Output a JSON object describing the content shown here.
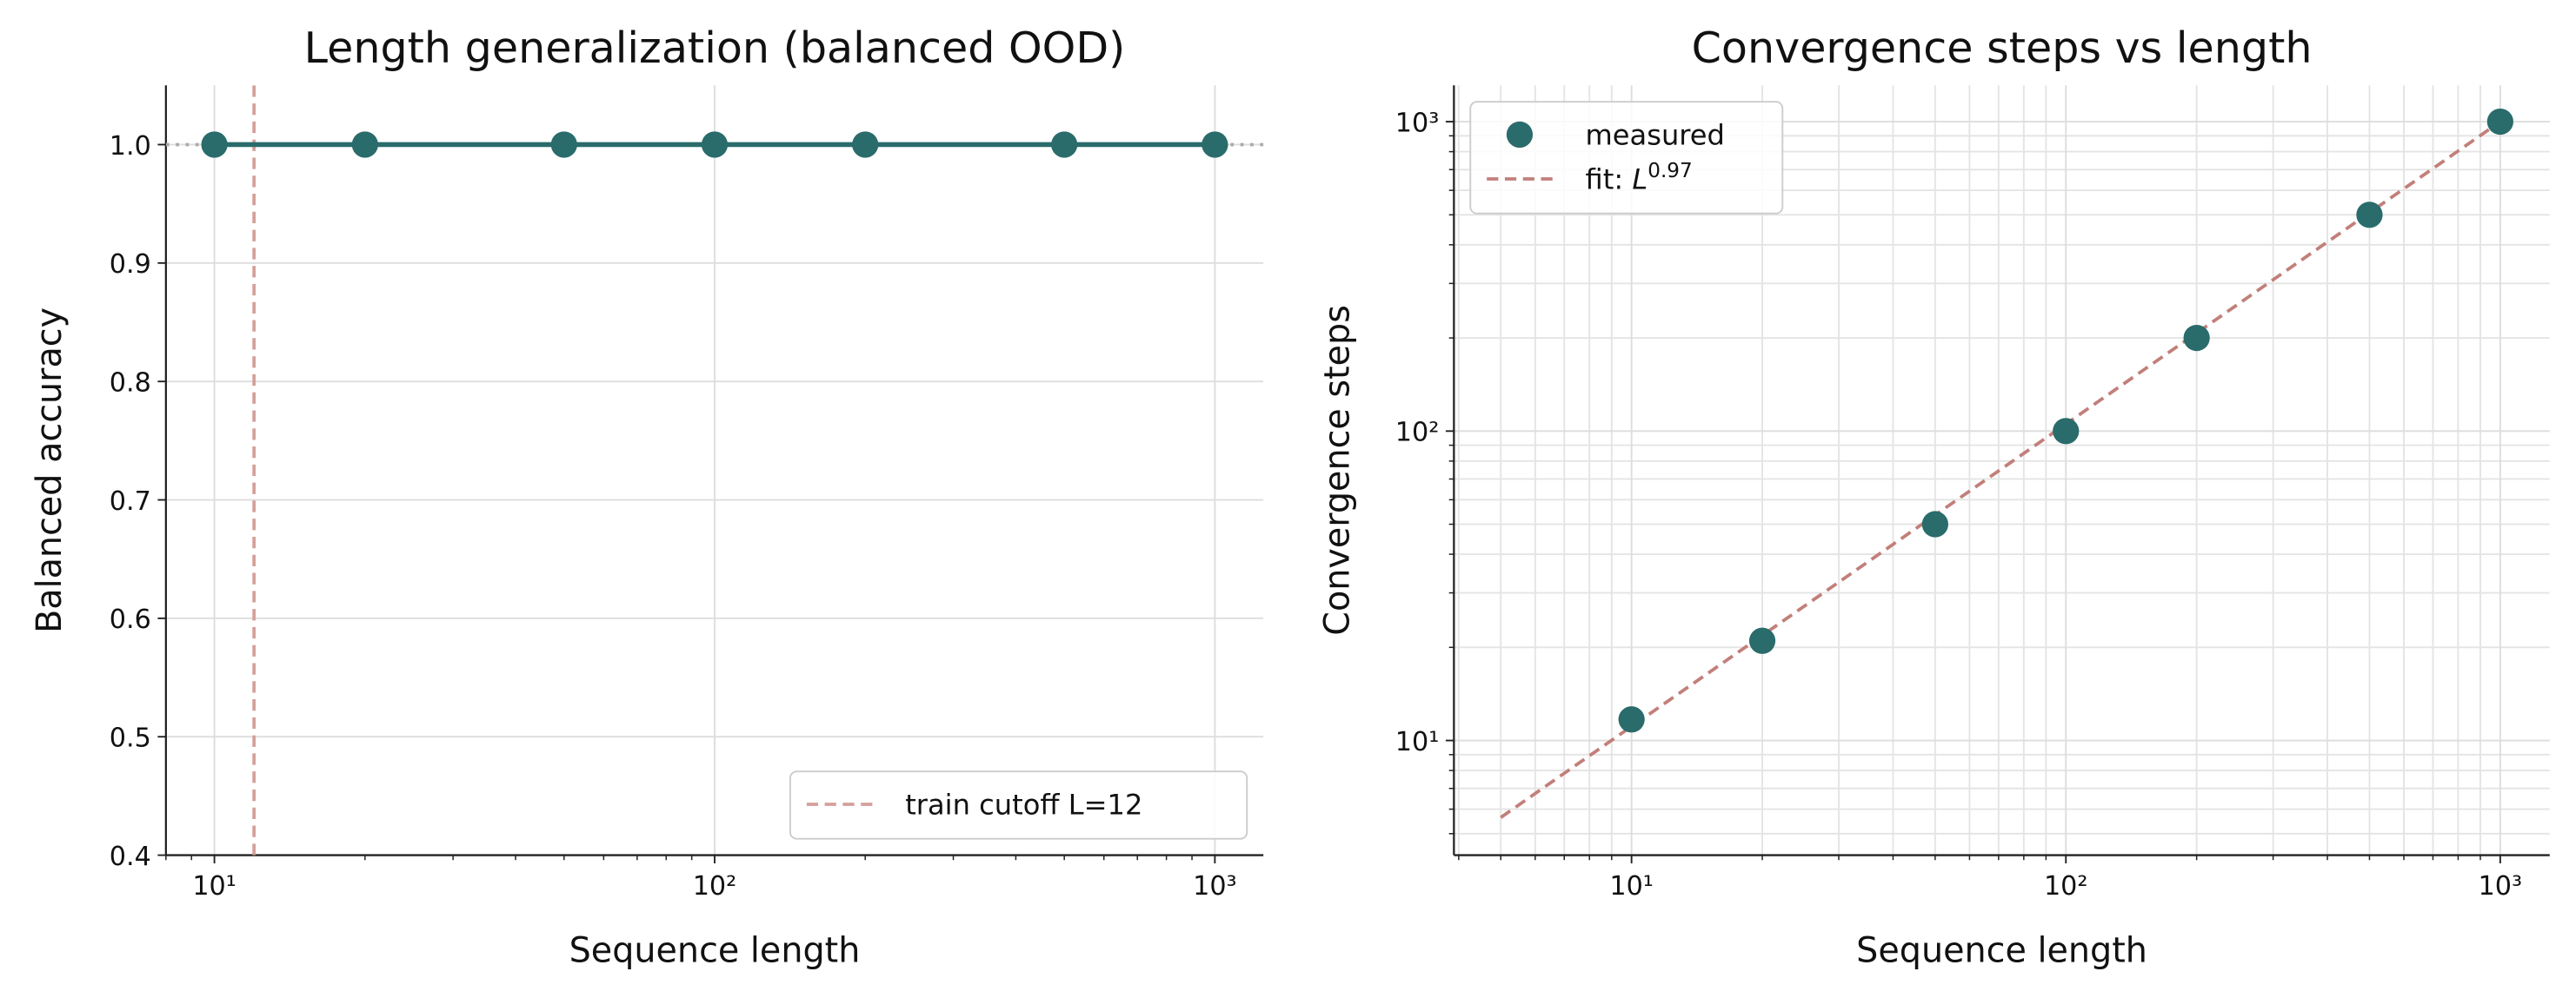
{
  "chart_data": [
    {
      "type": "line",
      "title": "Length generalization (balanced OOD)",
      "xlabel": "Sequence length",
      "ylabel": "Balanced accuracy",
      "xscale": "log",
      "xlim": [
        8,
        1250
      ],
      "ylim": [
        0.4,
        1.05
      ],
      "xticks": [
        {
          "value": 10,
          "label": "10¹"
        },
        {
          "value": 100,
          "label": "10²"
        },
        {
          "value": 1000,
          "label": "10³"
        }
      ],
      "yticks": [
        0.4,
        0.5,
        0.6,
        0.7,
        0.8,
        0.9,
        {
          "value": 1,
          "label": "1.0"
        }
      ],
      "grid": true,
      "minor_grid": false,
      "legend": "lower right",
      "x": [
        10,
        20,
        50,
        100,
        200,
        500,
        1000
      ],
      "series": [
        {
          "style": "line-marker",
          "color": "#2a6b6b",
          "values": [
            1,
            1,
            1,
            1,
            1,
            1,
            1
          ]
        }
      ],
      "hline": {
        "value": 1,
        "color": "#aaaaaa"
      },
      "vline": {
        "value": 12,
        "label": "train cutoff L=12",
        "color": "#d4a09a"
      }
    },
    {
      "type": "scatter",
      "title": "Convergence steps vs length",
      "xlabel": "Sequence length",
      "ylabel": "Convergence steps",
      "xscale": "log",
      "yscale": "log",
      "xlim": [
        3.9,
        1300
      ],
      "ylim": [
        4.26,
        1310
      ],
      "xticks": [
        {
          "value": 10,
          "label": "10¹"
        },
        {
          "value": 100,
          "label": "10²"
        },
        {
          "value": 1000,
          "label": "10³"
        }
      ],
      "yticks": [
        {
          "value": 10,
          "label": "10¹"
        },
        {
          "value": 100,
          "label": "10²"
        },
        {
          "value": 1000,
          "label": "10³"
        }
      ],
      "grid": true,
      "minor_grid": true,
      "legend": "upper left",
      "series": [
        {
          "name": "measured",
          "style": "marker",
          "color": "#2a6b6b",
          "x": [
            10,
            20,
            50,
            100,
            200,
            500,
            1000
          ],
          "values": [
            11.7,
            21,
            50,
            100,
            200,
            500,
            1000
          ]
        },
        {
          "name": "fit: L^0.97",
          "style": "dashed",
          "color": "#c27f7a",
          "x": [
            5,
            1000
          ],
          "values": [
            5.64,
            1000
          ]
        }
      ]
    }
  ]
}
